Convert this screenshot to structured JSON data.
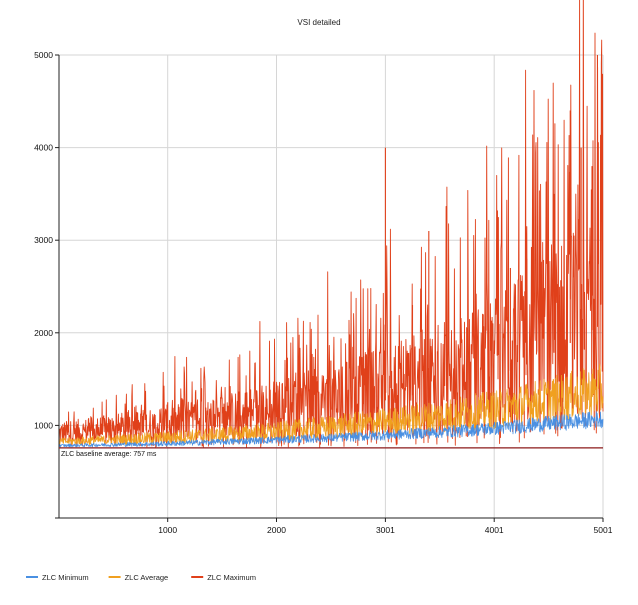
{
  "chart_data": {
    "type": "line",
    "title": "VSI detailed",
    "xlabel": "",
    "ylabel": "",
    "xlim": [
      1,
      5001
    ],
    "ylim": [
      0,
      5000
    ],
    "x_ticks": [
      1000,
      2000,
      3001,
      4001,
      5001
    ],
    "y_ticks": [
      1000,
      2000,
      3000,
      4000,
      5000
    ],
    "grid": true,
    "legend_position": "bottom-left",
    "baseline": {
      "label": "ZLC baseline average: 757 ms",
      "value": 757,
      "color": "#8b1a1a"
    },
    "series": [
      {
        "name": "ZLC Minimum",
        "color": "#4a90e2",
        "x": [
          1,
          500,
          1000,
          1500,
          2000,
          2500,
          3001,
          3500,
          4001,
          4500,
          5001
        ],
        "values": [
          780,
          790,
          800,
          820,
          840,
          860,
          890,
          920,
          960,
          1010,
          1060
        ]
      },
      {
        "name": "ZLC Average",
        "color": "#f0a020",
        "x": [
          1,
          500,
          1000,
          1500,
          2000,
          2500,
          3001,
          3500,
          4001,
          4500,
          5001
        ],
        "values": [
          820,
          840,
          860,
          890,
          920,
          970,
          1020,
          1080,
          1150,
          1250,
          1350
        ]
      },
      {
        "name": "ZLC Maximum",
        "color": "#e0401a",
        "x": [
          1,
          500,
          1000,
          1500,
          2000,
          2500,
          3001,
          3500,
          4001,
          4500,
          5001
        ],
        "values": [
          900,
          930,
          970,
          1020,
          1090,
          1170,
          1270,
          1380,
          1520,
          1750,
          2100
        ],
        "peaks": [
          {
            "x": 1000,
            "y": 1250
          },
          {
            "x": 1500,
            "y": 1300
          },
          {
            "x": 2000,
            "y": 1450
          },
          {
            "x": 2500,
            "y": 1700
          },
          {
            "x": 2800,
            "y": 1750
          },
          {
            "x": 3001,
            "y": 4000
          },
          {
            "x": 3250,
            "y": 2300
          },
          {
            "x": 3400,
            "y": 3100
          },
          {
            "x": 3900,
            "y": 2200
          },
          {
            "x": 4150,
            "y": 2700
          },
          {
            "x": 4300,
            "y": 2800
          },
          {
            "x": 4550,
            "y": 3500
          },
          {
            "x": 4700,
            "y": 4400
          },
          {
            "x": 4800,
            "y": 4000
          },
          {
            "x": 4900,
            "y": 3800
          },
          {
            "x": 4950,
            "y": 5000
          }
        ]
      }
    ]
  }
}
